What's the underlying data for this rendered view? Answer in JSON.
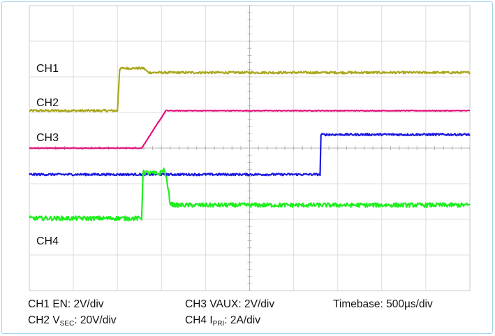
{
  "chart_data": {
    "type": "line",
    "title": "",
    "xlabel": "",
    "ylabel": "",
    "grid": true,
    "grid_divisions": {
      "x": 10,
      "y": 8
    },
    "xlim": [
      0,
      10
    ],
    "ylim": [
      -4,
      4
    ],
    "series": [
      {
        "name": "CH1",
        "color": "#aaa71c",
        "noise": 0.03,
        "x": [
          0,
          2.0,
          2.05,
          2.1,
          2.6,
          2.7,
          10
        ],
        "y": [
          1.05,
          1.05,
          2.22,
          2.24,
          2.24,
          2.12,
          2.12
        ]
      },
      {
        "name": "CH2",
        "color": "#e3137d",
        "noise": 0.01,
        "x": [
          0,
          2.55,
          3.1,
          3.2,
          10
        ],
        "y": [
          0.0,
          0.0,
          1.05,
          1.05,
          1.05
        ]
      },
      {
        "name": "CH3",
        "color": "#1c1ae0",
        "noise": 0.03,
        "x": [
          0,
          2.55,
          6.6,
          6.62,
          10
        ],
        "y": [
          -0.74,
          -0.74,
          -0.74,
          0.38,
          0.38
        ]
      },
      {
        "name": "CH4",
        "color": "#1fee1f",
        "noise": 0.06,
        "x": [
          0,
          2.55,
          2.58,
          2.95,
          3.05,
          3.1,
          3.2,
          3.3,
          10
        ],
        "y": [
          -1.97,
          -1.97,
          -0.68,
          -0.72,
          -0.6,
          -0.75,
          -1.56,
          -1.6,
          -1.6
        ]
      }
    ],
    "channel_labels": [
      "CH1",
      "CH2",
      "CH3",
      "CH4"
    ]
  },
  "captions": {
    "ch1": "CH1 EN: 2V/div",
    "ch2_pre": "CH2 V",
    "ch2_sub": "SEC",
    "ch2_post": ": 20V/div",
    "ch3": "CH3 VAUX: 2V/div",
    "ch4_pre": "CH4 I",
    "ch4_sub": "PRI",
    "ch4_post": ": 2A/div",
    "timebase": "Timebase: 500µs/div"
  }
}
